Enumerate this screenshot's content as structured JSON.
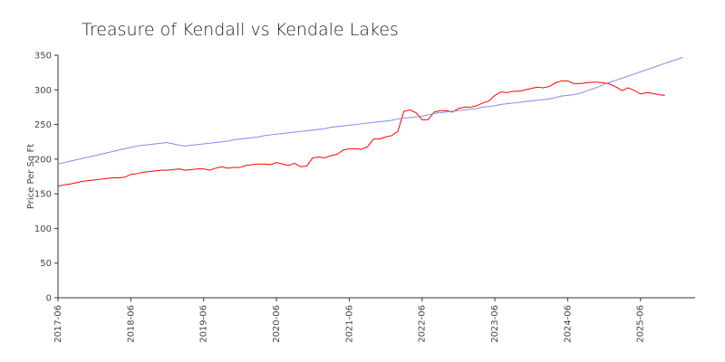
{
  "chart_data": {
    "type": "line",
    "title": "Treasure of Kendall vs Kendale Lakes",
    "xlabel": "",
    "ylabel": "Price Per Sq Ft",
    "ylim": [
      0,
      350
    ],
    "yticks": [
      0,
      50,
      100,
      150,
      200,
      250,
      300,
      350
    ],
    "xlim": [
      "2017-06",
      "2026-03"
    ],
    "xticks": [
      "2017-06",
      "2018-06",
      "2019-06",
      "2020-06",
      "2021-06",
      "2022-06",
      "2023-06",
      "2024-06",
      "2025-06"
    ],
    "grid": false,
    "legend": "none",
    "series": [
      {
        "name": "Treasure of Kendall",
        "color": "#ff0000",
        "start": "2017-06",
        "values": [
          161,
          163,
          164,
          166,
          168,
          169,
          170,
          171,
          172,
          173,
          173,
          174,
          178,
          179,
          181,
          182,
          183,
          184,
          184,
          185,
          186,
          184,
          185,
          186,
          186,
          184,
          187,
          189,
          187,
          188,
          188,
          191,
          192,
          193,
          193,
          192,
          195,
          193,
          191,
          194,
          189,
          190,
          202,
          203,
          202,
          205,
          207,
          213,
          215,
          215,
          214,
          218,
          229,
          229,
          232,
          234,
          240,
          269,
          271,
          267,
          257,
          257,
          268,
          270,
          270,
          268,
          273,
          275,
          275,
          277,
          281,
          284,
          292,
          297,
          296,
          298,
          298,
          300,
          302,
          304,
          303,
          305,
          310,
          313,
          313,
          309,
          309,
          310,
          311,
          311,
          310,
          308,
          304,
          299,
          303,
          299,
          294,
          296,
          295,
          293,
          292
        ]
      },
      {
        "name": "Kendale Lakes",
        "color": "#8888ee",
        "start": "2017-06",
        "values": [
          193,
          195,
          197,
          199,
          201,
          203,
          205,
          207,
          209,
          211,
          213,
          215,
          217,
          219,
          220,
          221,
          222,
          223,
          224,
          222,
          220,
          219,
          220,
          221,
          222,
          223,
          224,
          225,
          226,
          228,
          229,
          230,
          231,
          232,
          234,
          235,
          236,
          237,
          238,
          239,
          240,
          241,
          242,
          243,
          244,
          246,
          247,
          248,
          249,
          250,
          251,
          252,
          253,
          254,
          255,
          256,
          258,
          259,
          260,
          261,
          262,
          264,
          266,
          267,
          268,
          269,
          270,
          271,
          272,
          273,
          275,
          276,
          277,
          279,
          280,
          281,
          282,
          283,
          284,
          285,
          286,
          287,
          289,
          291,
          292,
          293,
          295,
          298,
          301,
          304,
          308,
          311,
          314,
          317,
          320,
          323,
          326,
          329,
          332,
          335,
          338,
          341,
          344,
          347
        ]
      }
    ]
  }
}
